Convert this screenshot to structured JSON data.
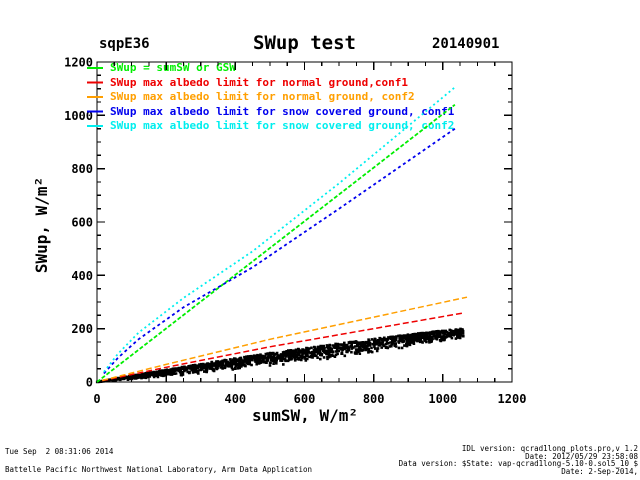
{
  "header": {
    "site_label": "sqpE36",
    "title": "SWup test",
    "date_label": "20140901"
  },
  "footer": {
    "timestamp": "Tue Sep  2 08:31:06 2014",
    "organization": "Battelle Pacific Northwest National Laboratory, Arm Data Application",
    "idl_version": "IDL version: qcrad1long_plots.pro,v 1.2",
    "idl_date": "Date: 2012/05/29 23:58:08",
    "data_version": "Data version: $State: vap-qcrad1long-5.10-0.sol5_10 $",
    "data_date": "Date: 2-Sep-2014,"
  },
  "chart_data": {
    "type": "scatter",
    "title": "SWup test",
    "site": "sqpE36",
    "date": "20140901",
    "xlabel": "sumSW, W/m²",
    "ylabel": "SWup, W/m²",
    "xlim": [
      0,
      1200
    ],
    "ylim": [
      0,
      1200
    ],
    "xticks": [
      0,
      200,
      400,
      600,
      800,
      1000,
      1200
    ],
    "yticks": [
      0,
      200,
      400,
      600,
      800,
      1000,
      1200
    ],
    "minor_tick_interval": 50,
    "grid": false,
    "legend_position": "top-left",
    "series": [
      {
        "name": "SWup = sumSW or GSW",
        "color": "#00ee00",
        "dash": "4 2",
        "width": 1.8,
        "points": [
          [
            0,
            0
          ],
          [
            1035,
            1040
          ]
        ]
      },
      {
        "name": "SWup max albedo limit for normal ground,conf1",
        "color": "#ee0000",
        "dash": "6 3",
        "width": 1.5,
        "points": [
          [
            15,
            5
          ],
          [
            200,
            55
          ],
          [
            500,
            132
          ],
          [
            1055,
            258
          ]
        ]
      },
      {
        "name": "SWup max albedo limit for normal ground, conf2",
        "color": "#ff9f00",
        "dash": "6 3",
        "width": 1.5,
        "points": [
          [
            15,
            6
          ],
          [
            200,
            66
          ],
          [
            500,
            160
          ],
          [
            1070,
            318
          ]
        ]
      },
      {
        "name": "SWup max albedo limit for snow covered ground, conf1",
        "color": "#0000ee",
        "dash": "3 3",
        "width": 1.8,
        "points": [
          [
            20,
            32
          ],
          [
            60,
            90
          ],
          [
            120,
            160
          ],
          [
            250,
            280
          ],
          [
            450,
            430
          ],
          [
            700,
            650
          ],
          [
            1035,
            950
          ]
        ]
      },
      {
        "name": "SWup max albedo limit for snow covered ground, conf2",
        "color": "#00eeee",
        "dash": "2 3",
        "width": 1.8,
        "points": [
          [
            20,
            38
          ],
          [
            60,
            105
          ],
          [
            120,
            185
          ],
          [
            250,
            315
          ],
          [
            450,
            490
          ],
          [
            700,
            745
          ],
          [
            1035,
            1105
          ]
        ]
      }
    ],
    "scatter": {
      "description": "measured SWup vs sumSW points (dense wedge, slope ~0.09-0.24)",
      "color": "#000000",
      "n": 1600,
      "x_max": 1060,
      "band_top_ratio": [
        0.24,
        0.19
      ],
      "band_bottom_ratio": [
        0.085,
        0.155
      ],
      "marker_px": 2.6,
      "seed": 11
    }
  }
}
